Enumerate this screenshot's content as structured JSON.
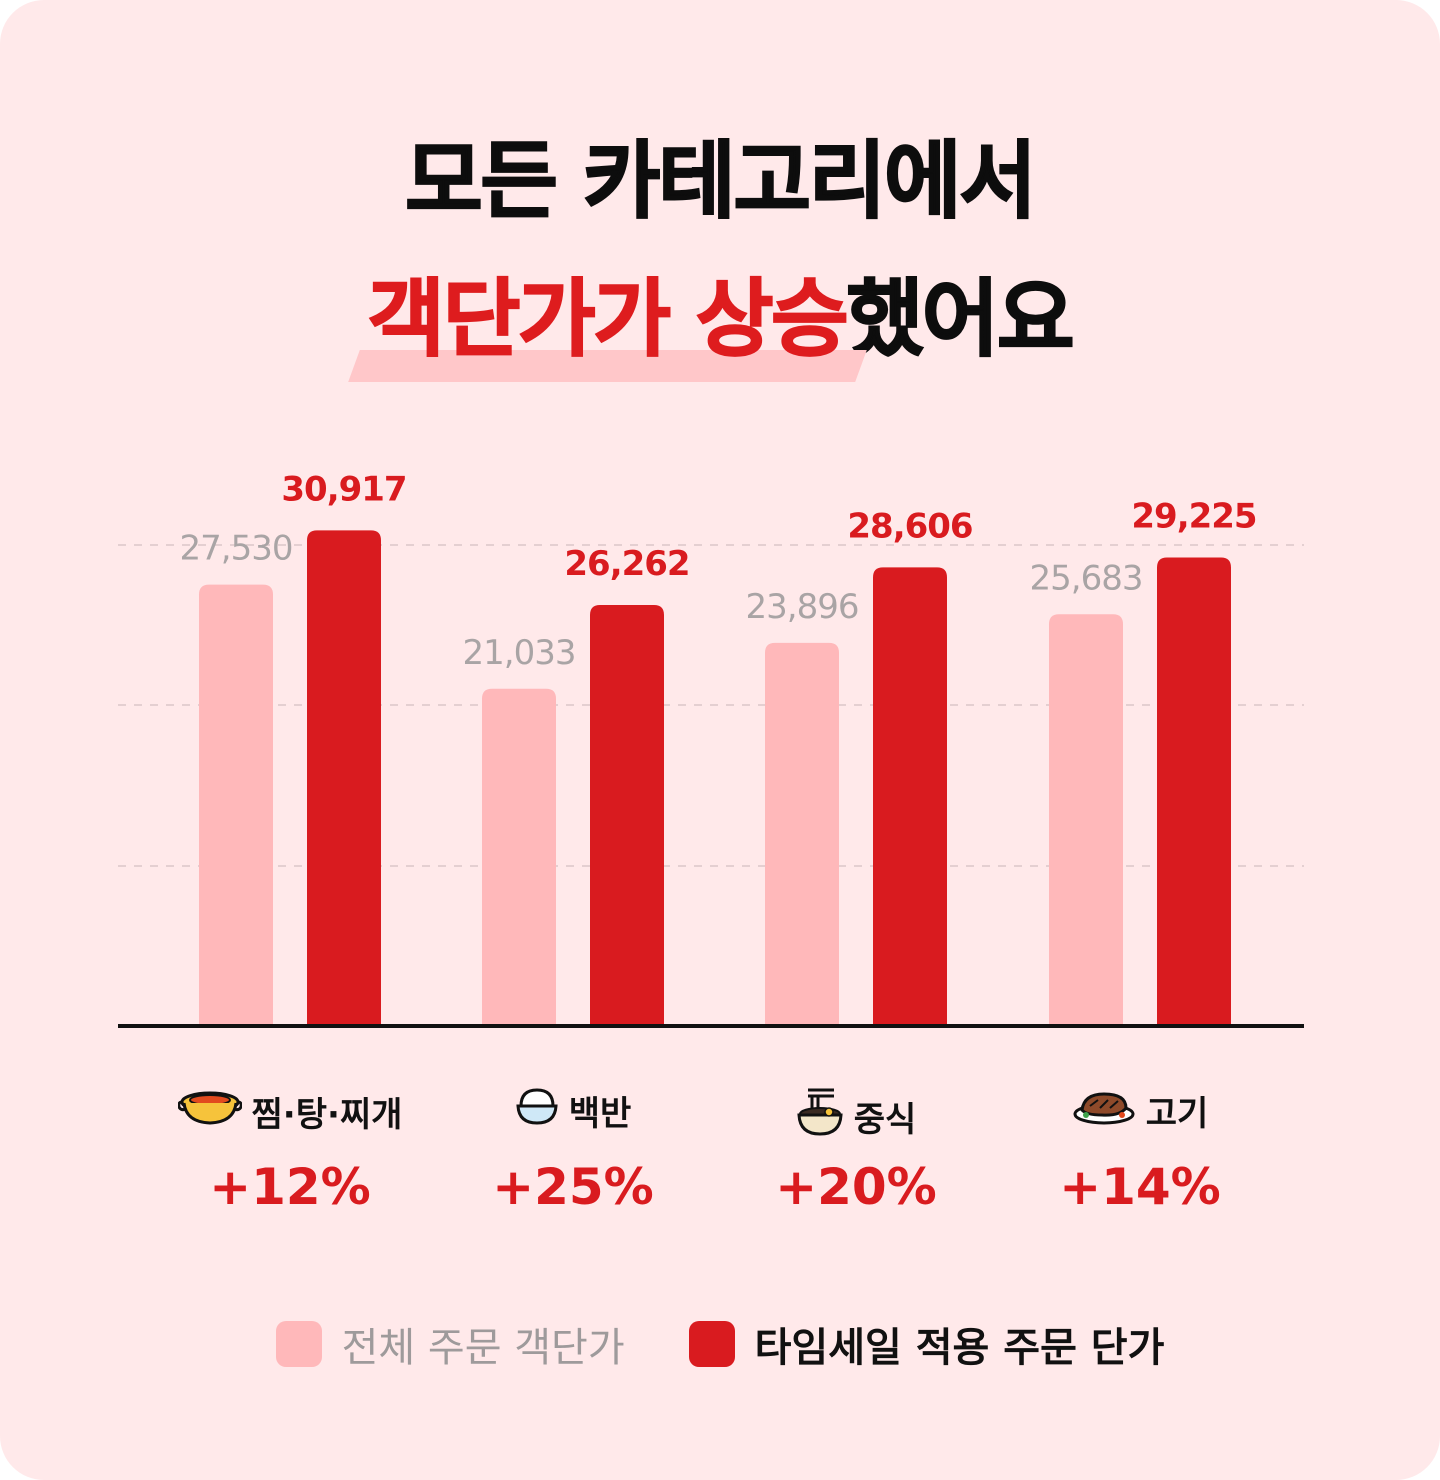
{
  "title": {
    "line1": "모든 카테고리에서",
    "line2_highlight": "객단가가 상승",
    "line2_rest": "했어요"
  },
  "colors": {
    "background": "#FFE9EA",
    "series_overall": "#FFB8BA",
    "series_timesale": "#D91B1F",
    "highlight_text": "#DE1C1E",
    "overall_label": "#A9A4A5",
    "grid": "#E4CFD1",
    "axis": "#111111"
  },
  "chart_data": {
    "type": "bar",
    "categories": [
      "찜·탕·찌개",
      "백반",
      "중식",
      "고기"
    ],
    "category_icons": [
      "hot-pot-icon",
      "rice-bowl-icon",
      "noodle-bowl-icon",
      "steak-plate-icon"
    ],
    "series": [
      {
        "name": "전체 주문 객단가",
        "values": [
          27530,
          21033,
          23896,
          25683
        ],
        "labels": [
          "27,530",
          "21,033",
          "23,896",
          "25,683"
        ]
      },
      {
        "name": "타임세일 적용 주문 단가",
        "values": [
          30917,
          26262,
          28606,
          29225
        ],
        "labels": [
          "30,917",
          "26,262",
          "28,606",
          "29,225"
        ]
      }
    ],
    "increase_labels": [
      "+12%",
      "+25%",
      "+20%",
      "+14%"
    ],
    "grid": true,
    "legend": "bottom"
  },
  "legend": {
    "overall": "전체 주문 객단가",
    "timesale": "타임세일 적용 주문 단가"
  }
}
